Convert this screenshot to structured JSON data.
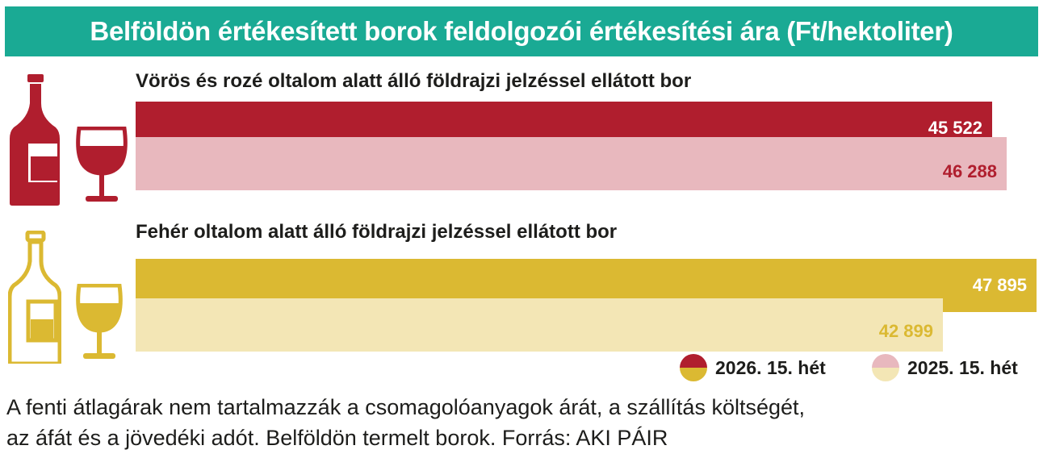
{
  "header": {
    "title": "Belföldön értékesített borok feldolgozói értékesítési ára  (Ft/hektoliter)"
  },
  "legend": [
    {
      "label": "2026. 15. hét",
      "colors": [
        "#b01e2e",
        "#dbb932"
      ]
    },
    {
      "label": "2025. 15. hét",
      "colors": [
        "#e8b8be",
        "#f3e6b5"
      ]
    }
  ],
  "chart_data": {
    "type": "bar",
    "orientation": "horizontal",
    "unit": "Ft/hektoliter",
    "categories": [
      "Vörös és rozé oltalom alatt álló földrajzi jelzéssel ellátott bor",
      "Fehér oltalom alatt álló földrajzi jelzéssel ellátott bor"
    ],
    "series": [
      {
        "name": "2026. 15. hét",
        "values": [
          45522,
          47895
        ],
        "labels": [
          "45 522",
          "47 895"
        ],
        "colors": [
          "#b01e2e",
          "#dbb932"
        ],
        "label_colors": [
          "#ffffff",
          "#ffffff"
        ]
      },
      {
        "name": "2025. 15. hét",
        "values": [
          46288,
          42899
        ],
        "labels": [
          "46 288",
          "42 899"
        ],
        "colors": [
          "#e8b8be",
          "#f3e6b5"
        ],
        "label_colors": [
          "#b01e2e",
          "#dbb932"
        ]
      }
    ],
    "xlim": [
      0,
      47895
    ],
    "grid": false,
    "legend_position": "bottom-right"
  },
  "footnote": {
    "line1": "A fenti átlagárak nem tartalmazzák a csomagolóanyagok árát, a szállítás költségét,",
    "line2": "az áfát és a jövedéki adót. Belföldön termelt borok. Forrás: AKI PÁIR"
  },
  "icons": {
    "red": [
      "red-wine-bottle-icon",
      "red-wine-glass-icon"
    ],
    "white": [
      "white-wine-bottle-icon",
      "white-wine-glass-icon"
    ]
  }
}
